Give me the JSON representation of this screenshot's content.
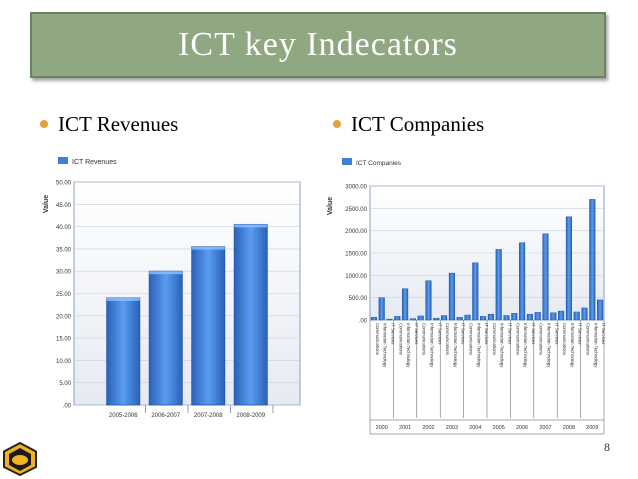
{
  "slide": {
    "title": "ICT key Indecators",
    "bullets": [
      "ICT Revenues",
      "ICT Companies"
    ],
    "page_number": "8"
  },
  "colors": {
    "bar": "#3f7fd8",
    "bar_dark": "#2a62b8",
    "title_bg": "#8fa882",
    "bullet": "#e8a03a"
  },
  "icons": {
    "logo": "bee-logo-icon"
  },
  "chart_data": [
    {
      "type": "bar",
      "legend": "ICT Revenues",
      "ylabel": "Value",
      "categories": [
        "2005-2006",
        "2006-2007",
        "2007-2008",
        "2008-2009"
      ],
      "values": [
        24,
        30,
        35.5,
        40.5
      ],
      "ylim": [
        0,
        50
      ],
      "yticks": [
        "50.00",
        "45.00",
        "40.00",
        "35.00",
        "30.00",
        "25.00",
        "20.00",
        "15.00",
        "10.00",
        "5.00",
        ".00"
      ],
      "grid": true,
      "legend_position": "top-left"
    },
    {
      "type": "bar",
      "legend": "ICT Companies",
      "ylabel": "Value",
      "groups": [
        "2000",
        "2001",
        "2002",
        "2003",
        "2004",
        "2005",
        "2006",
        "2007",
        "2008",
        "2009"
      ],
      "subcategories": [
        "Communications",
        "Information Technology",
        "IT Services"
      ],
      "values": [
        [
          60,
          500,
          20
        ],
        [
          80,
          700,
          30
        ],
        [
          90,
          880,
          40
        ],
        [
          100,
          1050,
          60
        ],
        [
          110,
          1280,
          80
        ],
        [
          130,
          1580,
          100
        ],
        [
          150,
          1730,
          130
        ],
        [
          170,
          1930,
          160
        ],
        [
          200,
          2310,
          180
        ],
        [
          270,
          2700,
          450
        ]
      ],
      "ylim": [
        0,
        3000
      ],
      "yticks": [
        "3000.00",
        "2500.00",
        "2000.00",
        "1500.00",
        "1000.00",
        "500.00",
        ".00"
      ],
      "grid": true,
      "legend_position": "top-left"
    }
  ]
}
